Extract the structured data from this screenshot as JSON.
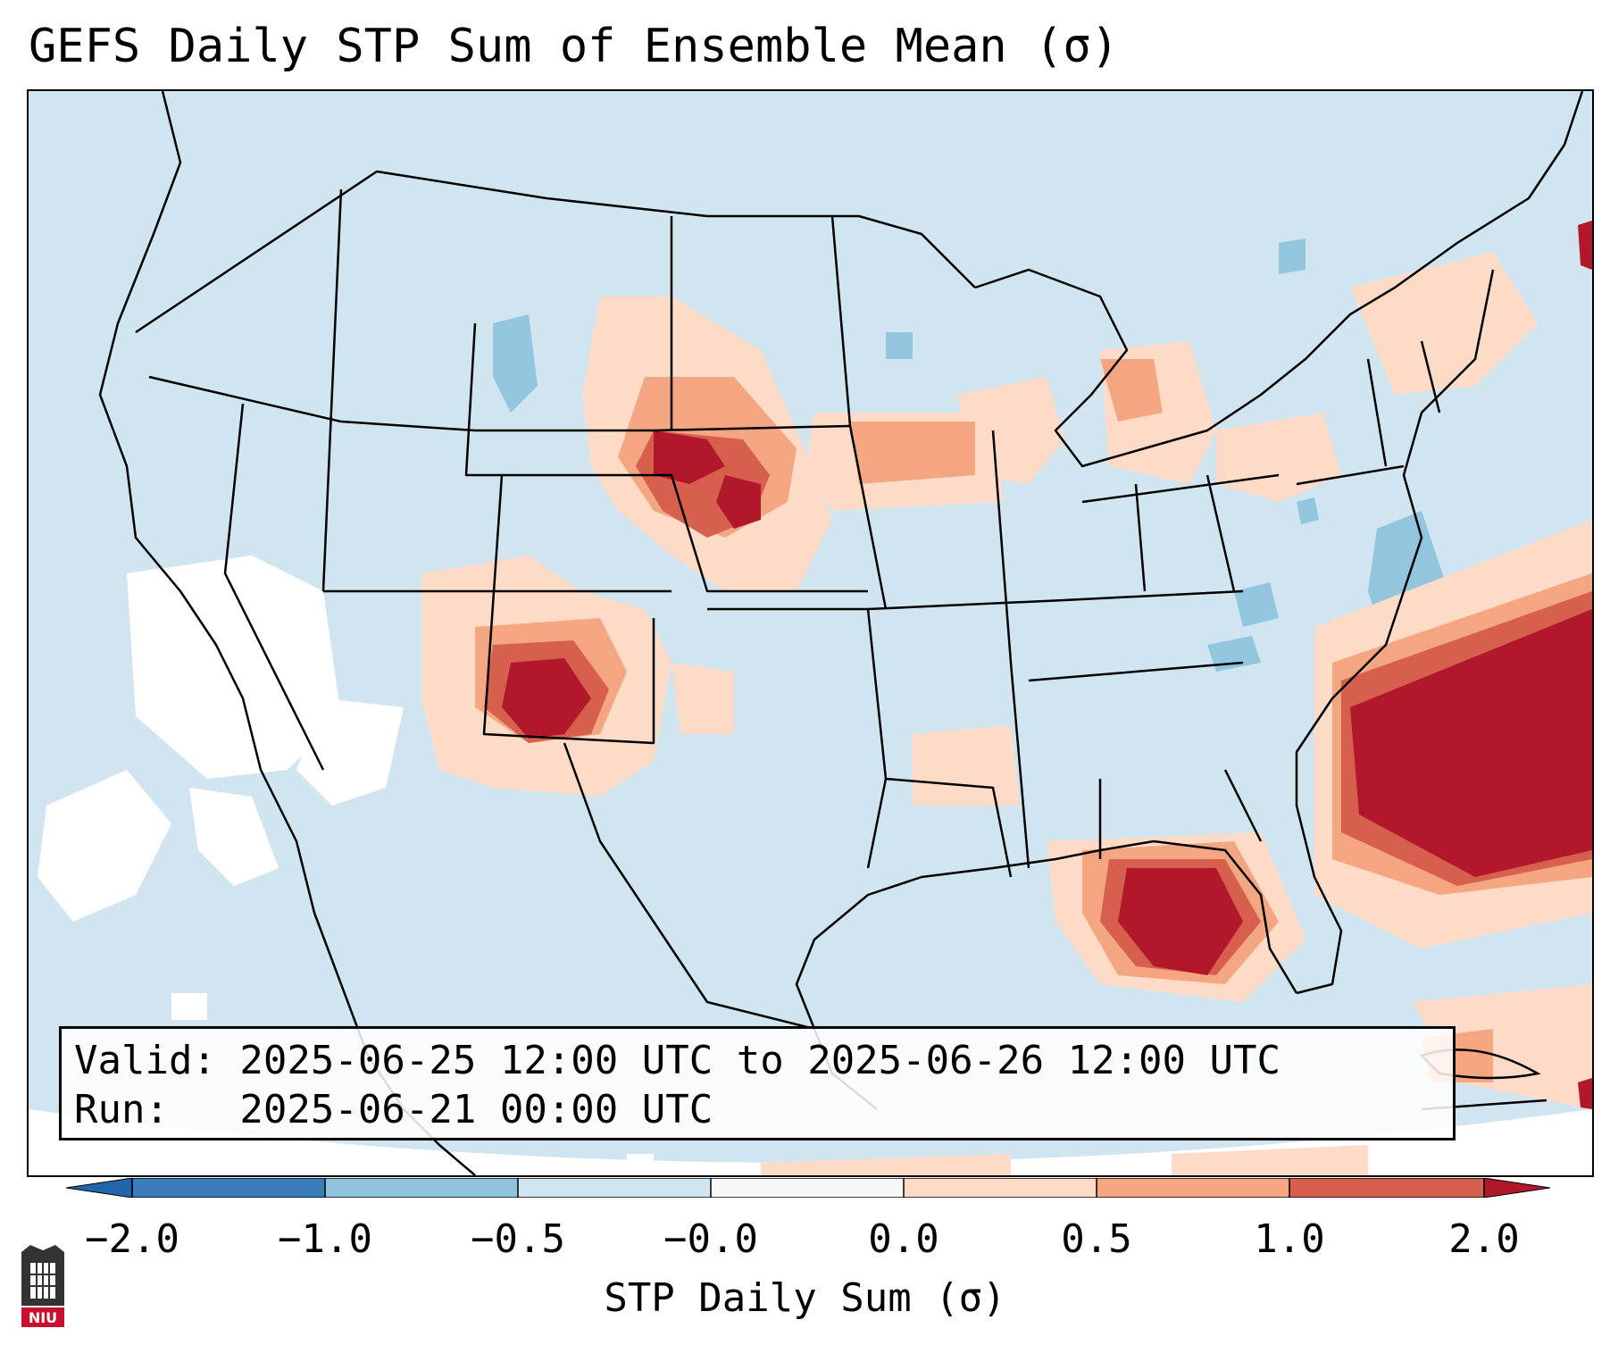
{
  "title": "GEFS Daily STP Sum of Ensemble Mean (σ)",
  "info": {
    "valid_line": "Valid: 2025-06-25 12:00 UTC to 2025-06-26 12:00 UTC",
    "run_line": "Run:   2025-06-21 00:00 UTC"
  },
  "colorbar": {
    "label": "STP Daily Sum (σ)",
    "ticks": [
      "−2.0",
      "−1.0",
      "−0.5",
      "−0.0",
      "0.0",
      "0.5",
      "1.0",
      "2.0"
    ],
    "colors": [
      "#3a7dbd",
      "#91c3df",
      "#d1e5f0",
      "#f7f7f7",
      "#fddbc7",
      "#f4a582",
      "#d6604d",
      "#b2182b"
    ],
    "under_color": "#2166ac",
    "over_color": "#b2182b"
  },
  "map": {
    "background_color": "#d1e5f0",
    "outside_color": "#ffffff"
  },
  "logo": {
    "text": "NIU",
    "color": "#c8102e"
  }
}
